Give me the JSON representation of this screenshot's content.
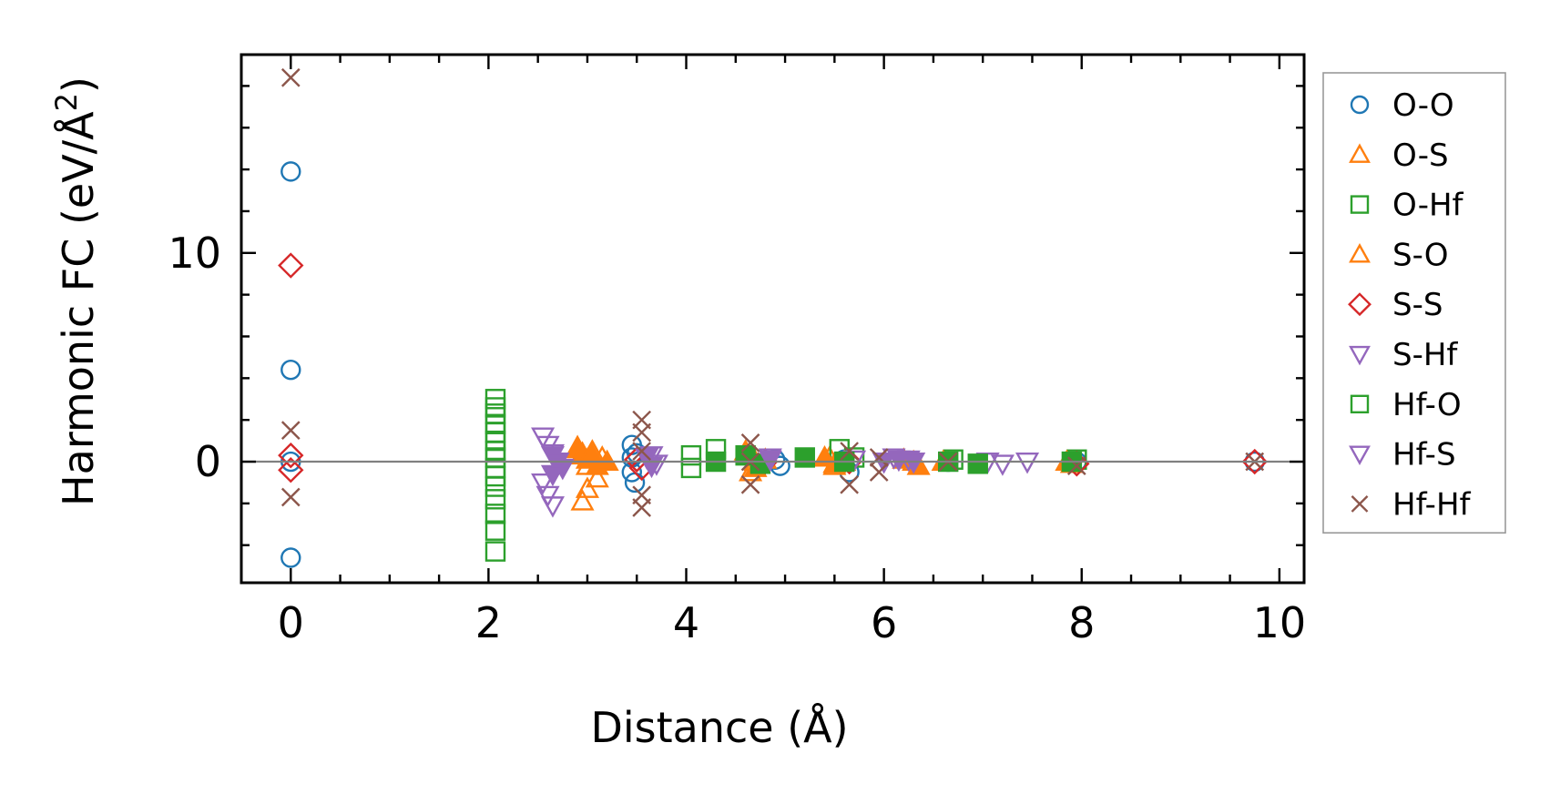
{
  "chart_data": {
    "type": "scatter",
    "title": "",
    "xlabel": "Distance (Å)",
    "ylabel_main": "Harmonic FC (eV/Å",
    "ylabel_sup": "2",
    "ylabel_close": ")",
    "xlim": [
      -0.5,
      10.25
    ],
    "ylim": [
      -5.8,
      19.5
    ],
    "x_ticks": [
      0,
      2,
      4,
      6,
      8,
      10
    ],
    "y_ticks": [
      0,
      10
    ],
    "x_tick_labels": [
      "0",
      "2",
      "4",
      "6",
      "8",
      "10"
    ],
    "y_tick_labels": [
      "0",
      "10"
    ],
    "x_minor_step": 0.5,
    "y_minor_step": 2,
    "zero_line": true,
    "grid": false,
    "legend_position": "outside-right",
    "series": [
      {
        "name": "O-O",
        "marker": "circle",
        "filled": false,
        "color": "#1f77b4",
        "x": [
          0,
          0,
          0,
          0,
          3.45,
          3.45,
          3.45,
          3.48,
          3.5,
          4.9,
          4.95,
          5.6,
          5.65,
          6.65,
          7.95,
          9.75
        ],
        "y": [
          13.9,
          4.4,
          0.0,
          -4.6,
          0.8,
          0.2,
          -0.5,
          -1.0,
          0.4,
          0.1,
          -0.2,
          0.1,
          -0.5,
          0.0,
          0.0,
          0.0
        ]
      },
      {
        "name": "O-S",
        "marker": "triangle-up",
        "filled": false,
        "color": "#ff7f0e",
        "x": [
          2.9,
          2.95,
          3.0,
          3.05,
          3.1,
          3.15,
          2.95,
          3.0,
          4.6,
          4.65,
          4.7,
          5.45,
          5.5,
          6.3,
          6.6,
          7.85,
          7.9
        ],
        "y": [
          0.7,
          0.3,
          -0.2,
          0.5,
          -0.8,
          0.2,
          -1.9,
          -1.3,
          0.5,
          -0.5,
          0.0,
          0.2,
          -0.2,
          0.0,
          0.0,
          0.0,
          -0.1
        ]
      },
      {
        "name": "O-Hf",
        "marker": "square",
        "filled": false,
        "color": "#2ca02c",
        "x": [
          2.07,
          2.07,
          2.07,
          2.07,
          2.07,
          2.07,
          2.07,
          2.07,
          2.07,
          2.07,
          2.07,
          2.07,
          2.07,
          2.07,
          2.07,
          4.05,
          4.05,
          4.3,
          5.55,
          5.7,
          6.7,
          7.95
        ],
        "y": [
          3.0,
          2.6,
          2.3,
          1.8,
          1.4,
          1.0,
          0.5,
          0.2,
          -0.3,
          -0.7,
          -1.2,
          -1.8,
          -2.5,
          -3.3,
          -4.3,
          0.3,
          -0.3,
          0.6,
          0.6,
          0.2,
          0.1,
          0.1
        ]
      },
      {
        "name": "S-O",
        "marker": "triangle-up",
        "filled": true,
        "color": "#ff7f0e",
        "x": [
          2.9,
          2.95,
          3.0,
          3.05,
          3.1,
          3.2,
          4.6,
          4.7,
          4.8,
          5.4,
          5.5,
          5.6,
          6.2,
          6.35,
          6.6,
          7.85
        ],
        "y": [
          0.6,
          0.4,
          0.1,
          0.3,
          -0.2,
          0.0,
          0.4,
          -0.3,
          0.1,
          0.2,
          -0.1,
          0.0,
          0.1,
          -0.2,
          0.0,
          0.0
        ]
      },
      {
        "name": "S-S",
        "marker": "diamond",
        "filled": false,
        "color": "#d62728",
        "x": [
          0,
          0,
          0,
          3.5,
          3.55,
          4.8,
          5.65,
          7.95,
          9.75
        ],
        "y": [
          9.4,
          0.3,
          -0.4,
          0.1,
          -0.3,
          0.0,
          0.0,
          -0.1,
          0.0
        ]
      },
      {
        "name": "S-Hf",
        "marker": "triangle-down",
        "filled": false,
        "color": "#9467bd",
        "x": [
          2.55,
          2.6,
          2.65,
          2.7,
          2.55,
          2.6,
          2.65,
          3.65,
          3.7,
          4.85,
          5.7,
          6.1,
          6.25,
          7.05,
          7.2,
          7.45
        ],
        "y": [
          1.2,
          0.8,
          0.4,
          0.0,
          -1.0,
          -1.6,
          -2.1,
          0.3,
          -0.1,
          0.2,
          0.1,
          0.2,
          0.1,
          0.0,
          -0.1,
          0.0
        ]
      },
      {
        "name": "Hf-O",
        "marker": "square",
        "filled": true,
        "color": "#2ca02c",
        "x": [
          4.3,
          4.6,
          4.75,
          5.2,
          5.6,
          6.65,
          6.95,
          7.9
        ],
        "y": [
          0.0,
          0.3,
          -0.1,
          0.2,
          0.0,
          0.0,
          -0.1,
          0.0
        ]
      },
      {
        "name": "Hf-S",
        "marker": "triangle-down",
        "filled": true,
        "color": "#9467bd",
        "x": [
          2.65,
          2.7,
          2.75,
          2.65,
          3.6,
          3.65,
          4.85,
          6.0,
          6.15,
          6.3
        ],
        "y": [
          0.3,
          0.0,
          -0.3,
          -0.6,
          0.2,
          -0.2,
          0.1,
          0.0,
          0.1,
          0.0
        ]
      },
      {
        "name": "Hf-Hf",
        "marker": "x",
        "filled": false,
        "color": "#8c564b",
        "x": [
          0,
          0,
          0,
          3.55,
          3.55,
          3.55,
          3.55,
          3.55,
          4.65,
          4.65,
          4.65,
          5.65,
          5.65,
          5.95,
          5.95,
          6.65,
          7.95,
          9.75
        ],
        "y": [
          18.4,
          1.5,
          -1.7,
          2.0,
          1.4,
          0.5,
          -1.6,
          -2.2,
          0.9,
          0.0,
          -1.1,
          0.5,
          -1.1,
          0.2,
          -0.5,
          0.0,
          -0.2,
          0.0
        ]
      }
    ]
  }
}
